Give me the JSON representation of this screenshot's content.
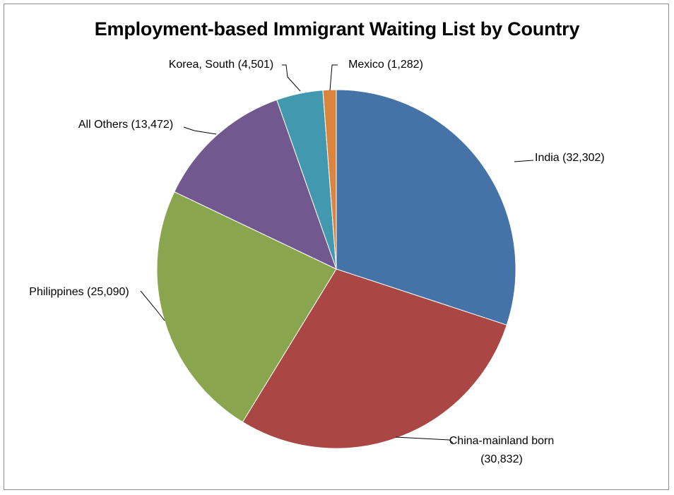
{
  "chart_data": {
    "type": "pie",
    "title": "Employment-based Immigrant Waiting List by Country",
    "categories": [
      "India",
      "China-mainland born",
      "Philippines",
      "All Others",
      "Korea, South",
      "Mexico"
    ],
    "values": [
      32302,
      30832,
      25090,
      13472,
      4501,
      1282
    ],
    "labels": [
      [
        "India (32,302)"
      ],
      [
        "China-mainland born",
        "(30,832)"
      ],
      [
        "Philippines (25,090)"
      ],
      [
        "All Others (13,472)"
      ],
      [
        "Korea, South (4,501)"
      ],
      [
        "Mexico (1,282)"
      ]
    ],
    "colors": [
      "#4572a7",
      "#aa4643",
      "#89a54e",
      "#71588f",
      "#4198af",
      "#db843d"
    ],
    "legend": "none"
  }
}
